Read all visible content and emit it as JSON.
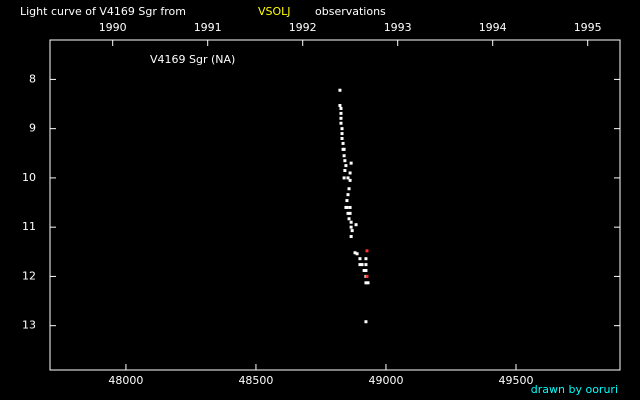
{
  "chart_data": {
    "type": "scatter",
    "title": "Light curve of V4169 Sgr from",
    "title_source": "VSOLJ",
    "title_suffix": "observations",
    "annotation": "V4169 Sgr (NA)",
    "credit": "drawn by ooruri",
    "title_color": "#ffffff",
    "source_color": "#ffff00",
    "credit_color": "#00ffff",
    "axis_color": "#ffffff",
    "xlim": [
      47708,
      49900
    ],
    "xticks": [
      48000,
      48500,
      49000,
      49500
    ],
    "x2lim": [
      1989.34,
      1995.34
    ],
    "x2ticks": [
      1990,
      1991,
      1992,
      1993,
      1994,
      1995
    ],
    "ylim": [
      13.9,
      7.2
    ],
    "yticks": [
      8,
      9,
      10,
      11,
      12,
      13
    ],
    "series": [
      {
        "color": "#ffffff",
        "x": [
          48823,
          48823,
          48827,
          48827,
          48827,
          48827,
          48831,
          48831,
          48831,
          48835,
          48835,
          48839,
          48839,
          48842,
          48846,
          48842,
          48839,
          48854,
          48862,
          48866,
          48862,
          48858,
          48854,
          48850,
          48850,
          48862,
          48846,
          48854,
          48862,
          48858,
          48866,
          48866,
          48870,
          48885,
          48866,
          48881,
          48889,
          48900,
          48900,
          48908,
          48923,
          48923,
          48916,
          48923,
          48923,
          48923,
          48931,
          48923
        ],
        "values": [
          8.22,
          8.53,
          8.59,
          8.69,
          8.79,
          8.89,
          9.0,
          9.1,
          9.2,
          9.3,
          9.42,
          9.42,
          9.55,
          9.65,
          9.75,
          9.85,
          10.0,
          10.0,
          9.9,
          9.7,
          10.05,
          10.22,
          10.34,
          10.46,
          10.6,
          10.6,
          10.6,
          10.72,
          10.72,
          10.83,
          10.9,
          11.0,
          11.07,
          10.95,
          11.19,
          11.52,
          11.54,
          11.64,
          11.76,
          11.76,
          11.64,
          11.76,
          11.88,
          11.88,
          12.0,
          12.13,
          12.13,
          12.92
        ]
      },
      {
        "color": "#ff3030",
        "x": [
          48927,
          48927
        ],
        "values": [
          11.48,
          12.0
        ]
      }
    ]
  }
}
